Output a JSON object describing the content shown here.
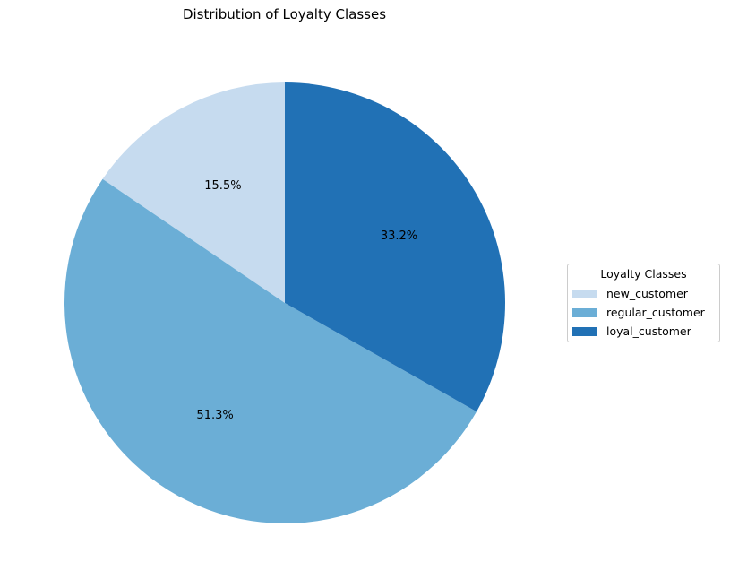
{
  "chart_data": {
    "type": "pie",
    "title": "Distribution of Loyalty Classes",
    "categories": [
      "new_customer",
      "regular_customer",
      "loyal_customer"
    ],
    "values": [
      15.5,
      51.3,
      33.2
    ],
    "value_labels": [
      "15.5%",
      "51.3%",
      "33.2%"
    ],
    "colors": [
      "#c6dbef",
      "#6baed6",
      "#2171b5"
    ],
    "start_angle_deg": 90,
    "direction": "counterclockwise",
    "legend": {
      "title": "Loyalty Classes",
      "placement": "right"
    }
  }
}
